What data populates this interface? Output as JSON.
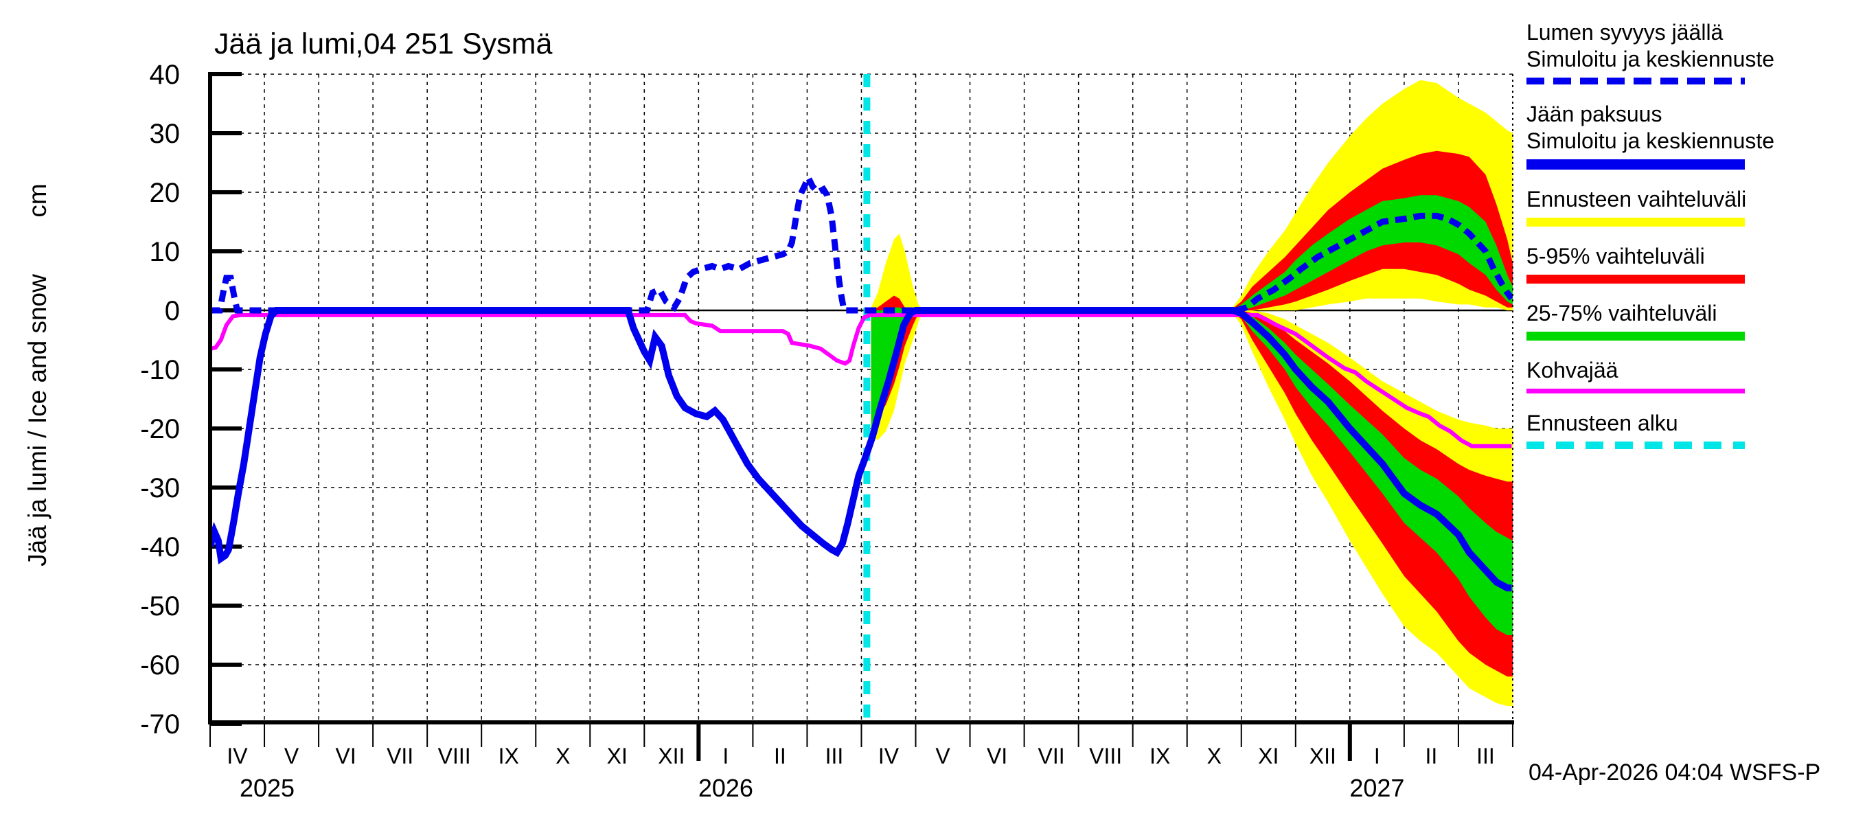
{
  "chart_data": {
    "type": "line",
    "title": "Jää ja lumi,04 251 Sysmä",
    "ylabel": "Jää ja lumi / Ice and snow",
    "ylabel_unit": "cm",
    "timestamp": "04-Apr-2026 04:04 WSFS-P",
    "grid": true,
    "legend_position": "right",
    "ylim": [
      -70,
      40
    ],
    "y_ticks": [
      40,
      30,
      20,
      10,
      0,
      -10,
      -20,
      -30,
      -40,
      -50,
      -60,
      -70
    ],
    "x_month_labels": [
      "IV",
      "V",
      "VI",
      "VII",
      "VIII",
      "IX",
      "X",
      "XI",
      "XII",
      "I",
      "II",
      "III",
      "IV",
      "V",
      "VI",
      "VII",
      "VIII",
      "IX",
      "X",
      "XI",
      "XII",
      "I",
      "II",
      "III"
    ],
    "year_labels": [
      {
        "month": 0.55,
        "label": "2025",
        "tick": false
      },
      {
        "month": 9,
        "label": "2026",
        "tick": true
      },
      {
        "month": 21,
        "label": "2027",
        "tick": true
      }
    ],
    "forecast_start_month": 12.1,
    "colors": {
      "blue": "#0000ee",
      "yellow": "#ffff00",
      "red": "#ff0000",
      "green": "#00d900",
      "magenta": "#ff00ff",
      "cyan": "#00e6e6",
      "black": "#000000"
    },
    "series": {
      "ice_thickness": [
        [
          0,
          -40
        ],
        [
          0.08,
          -37.5
        ],
        [
          0.15,
          -39
        ],
        [
          0.2,
          -42
        ],
        [
          0.28,
          -41.5
        ],
        [
          0.34,
          -40.5
        ],
        [
          0.43,
          -36
        ],
        [
          0.52,
          -31
        ],
        [
          0.62,
          -26
        ],
        [
          0.72,
          -20
        ],
        [
          0.82,
          -14
        ],
        [
          0.92,
          -8
        ],
        [
          1.02,
          -4
        ],
        [
          1.12,
          -1
        ],
        [
          1.22,
          0
        ],
        [
          7.7,
          0
        ],
        [
          7.8,
          -3
        ],
        [
          7.9,
          -5
        ],
        [
          8.0,
          -7
        ],
        [
          8.1,
          -8.5
        ],
        [
          8.2,
          -4.5
        ],
        [
          8.32,
          -6
        ],
        [
          8.45,
          -11
        ],
        [
          8.6,
          -14.5
        ],
        [
          8.75,
          -16.5
        ],
        [
          8.95,
          -17.5
        ],
        [
          9.15,
          -18
        ],
        [
          9.3,
          -17
        ],
        [
          9.45,
          -18.5
        ],
        [
          9.6,
          -21
        ],
        [
          9.75,
          -23.5
        ],
        [
          9.9,
          -26
        ],
        [
          10.1,
          -28.5
        ],
        [
          10.3,
          -30.5
        ],
        [
          10.5,
          -32.5
        ],
        [
          10.7,
          -34.5
        ],
        [
          10.9,
          -36.5
        ],
        [
          11.1,
          -38
        ],
        [
          11.3,
          -39.5
        ],
        [
          11.45,
          -40.5
        ],
        [
          11.55,
          -41
        ],
        [
          11.65,
          -39.5
        ],
        [
          11.75,
          -36
        ],
        [
          11.85,
          -32
        ],
        [
          11.95,
          -28
        ],
        [
          12.07,
          -25
        ],
        [
          12.2,
          -21.5
        ],
        [
          12.35,
          -16.5
        ],
        [
          12.5,
          -12
        ],
        [
          12.65,
          -7
        ],
        [
          12.78,
          -2.5
        ],
        [
          12.9,
          -0.5
        ],
        [
          13.0,
          0
        ],
        [
          18.85,
          0
        ],
        [
          19.0,
          -0.5
        ],
        [
          19.2,
          -2
        ],
        [
          19.5,
          -4.5
        ],
        [
          19.8,
          -7.5
        ],
        [
          20.0,
          -10
        ],
        [
          20.3,
          -13
        ],
        [
          20.6,
          -15.5
        ],
        [
          21.0,
          -20
        ],
        [
          21.3,
          -23
        ],
        [
          21.6,
          -26
        ],
        [
          22.0,
          -31
        ],
        [
          22.3,
          -33
        ],
        [
          22.6,
          -34.5
        ],
        [
          23.0,
          -38
        ],
        [
          23.2,
          -41
        ],
        [
          23.5,
          -44
        ],
        [
          23.7,
          -46
        ],
        [
          23.9,
          -47
        ],
        [
          23.98,
          -47
        ]
      ],
      "snow_depth_on_ice": [
        [
          0,
          0
        ],
        [
          0.18,
          0
        ],
        [
          0.24,
          3
        ],
        [
          0.3,
          5.5
        ],
        [
          0.38,
          5.5
        ],
        [
          0.44,
          2.5
        ],
        [
          0.5,
          0
        ],
        [
          8.05,
          0
        ],
        [
          8.15,
          3
        ],
        [
          8.28,
          3.5
        ],
        [
          8.4,
          1.5
        ],
        [
          8.55,
          0.5
        ],
        [
          8.65,
          2
        ],
        [
          8.78,
          5.5
        ],
        [
          8.9,
          6.5
        ],
        [
          9.05,
          7
        ],
        [
          9.25,
          7.5
        ],
        [
          9.4,
          7
        ],
        [
          9.55,
          7.5
        ],
        [
          9.75,
          7
        ],
        [
          9.95,
          8
        ],
        [
          10.15,
          8.5
        ],
        [
          10.35,
          9
        ],
        [
          10.55,
          9.5
        ],
        [
          10.65,
          10
        ],
        [
          10.72,
          11.5
        ],
        [
          10.8,
          16
        ],
        [
          10.87,
          19.5
        ],
        [
          10.95,
          21
        ],
        [
          11.02,
          22.5
        ],
        [
          11.1,
          21
        ],
        [
          11.2,
          20
        ],
        [
          11.3,
          20.5
        ],
        [
          11.37,
          19.5
        ],
        [
          11.45,
          16
        ],
        [
          11.5,
          12
        ],
        [
          11.56,
          7
        ],
        [
          11.62,
          3
        ],
        [
          11.68,
          0
        ],
        [
          18.9,
          0
        ],
        [
          19.1,
          0.5
        ],
        [
          19.3,
          2
        ],
        [
          19.6,
          3.5
        ],
        [
          19.9,
          5.5
        ],
        [
          20.1,
          7
        ],
        [
          20.4,
          9
        ],
        [
          20.7,
          10.5
        ],
        [
          21.0,
          12
        ],
        [
          21.3,
          13.5
        ],
        [
          21.6,
          15
        ],
        [
          22.0,
          15.5
        ],
        [
          22.3,
          16
        ],
        [
          22.6,
          16
        ],
        [
          22.8,
          15.5
        ],
        [
          23.0,
          14.5
        ],
        [
          23.2,
          13
        ],
        [
          23.35,
          11.5
        ],
        [
          23.5,
          10
        ],
        [
          23.65,
          7
        ],
        [
          23.8,
          4.5
        ],
        [
          23.9,
          3
        ],
        [
          23.98,
          2
        ]
      ],
      "kohvajaa": [
        [
          0,
          -6.5
        ],
        [
          0.1,
          -6.3
        ],
        [
          0.2,
          -5
        ],
        [
          0.3,
          -2.5
        ],
        [
          0.42,
          -1
        ],
        [
          0.55,
          -0.8
        ],
        [
          8.75,
          -0.8
        ],
        [
          8.85,
          -1.8
        ],
        [
          8.95,
          -2.2
        ],
        [
          9.25,
          -2.6
        ],
        [
          9.4,
          -3.5
        ],
        [
          10.55,
          -3.5
        ],
        [
          10.65,
          -4
        ],
        [
          10.72,
          -5.5
        ],
        [
          11.05,
          -6
        ],
        [
          11.25,
          -6.5
        ],
        [
          11.4,
          -7.5
        ],
        [
          11.55,
          -8.5
        ],
        [
          11.7,
          -9
        ],
        [
          11.78,
          -8.5
        ],
        [
          11.85,
          -6
        ],
        [
          11.95,
          -3
        ],
        [
          12.05,
          -1.2
        ],
        [
          12.15,
          -0.8
        ],
        [
          19.3,
          -0.8
        ],
        [
          19.45,
          -1.5
        ],
        [
          19.65,
          -2.5
        ],
        [
          20.0,
          -4
        ],
        [
          20.3,
          -6
        ],
        [
          20.6,
          -8
        ],
        [
          20.9,
          -9.8
        ],
        [
          21.1,
          -10.5
        ],
        [
          21.3,
          -12
        ],
        [
          21.55,
          -13.5
        ],
        [
          21.8,
          -15
        ],
        [
          22.05,
          -16.5
        ],
        [
          22.3,
          -17.5
        ],
        [
          22.45,
          -18
        ],
        [
          22.65,
          -19.5
        ],
        [
          22.85,
          -20.5
        ],
        [
          23.05,
          -22
        ],
        [
          23.25,
          -23
        ],
        [
          23.98,
          -23
        ]
      ]
    },
    "bands": {
      "spring_2026_melt": {
        "x": [
          12.18,
          12.3,
          12.45,
          12.6,
          12.7,
          12.8,
          12.95,
          13.05,
          13.12
        ],
        "yellow_up": [
          0.5,
          3,
          8,
          12,
          13,
          10,
          4,
          1,
          0
        ],
        "yellow_lo": [
          -21,
          -22,
          -20.5,
          -17,
          -13,
          -9,
          -5,
          -2,
          0
        ],
        "red_up": [
          0,
          0.5,
          1.5,
          2.5,
          2,
          0.5,
          0,
          0,
          0
        ],
        "red_lo": [
          -19,
          -18,
          -16,
          -12.5,
          -9.5,
          -6,
          -2.5,
          -0.5,
          0
        ],
        "green_up": [
          0,
          0,
          0,
          0.5,
          0.5,
          0,
          0,
          0,
          0
        ],
        "green_lo": [
          -20.5,
          -18.5,
          -14,
          -9,
          -5.5,
          -2.5,
          -0.5,
          0,
          0
        ]
      },
      "winter_2027_ice": {
        "x": [
          18.8,
          19.0,
          19.2,
          19.5,
          19.8,
          20.0,
          20.3,
          20.6,
          21.0,
          21.3,
          21.6,
          22.0,
          22.3,
          22.6,
          23.0,
          23.2,
          23.5,
          23.7,
          23.9,
          24.0
        ],
        "yellow_up": [
          0,
          0,
          0,
          -0.5,
          -1.5,
          -2.5,
          -4,
          -5.5,
          -8,
          -10,
          -12,
          -14,
          -15.5,
          -17,
          -18.5,
          -19,
          -19.5,
          -20,
          -20,
          -20
        ],
        "yellow_lo": [
          0,
          -2.5,
          -7,
          -13,
          -18.5,
          -22.5,
          -28,
          -32.5,
          -39,
          -43.5,
          -48,
          -53.5,
          -56,
          -58,
          -62,
          -64,
          -65.5,
          -66.5,
          -67,
          -67
        ],
        "red_up": [
          0,
          0,
          -0.5,
          -2,
          -3.5,
          -5,
          -7,
          -9,
          -12,
          -14.5,
          -17,
          -20,
          -22,
          -23.5,
          -26,
          -27,
          -28,
          -28.5,
          -29,
          -29
        ],
        "red_lo": [
          0,
          -1.5,
          -5,
          -9.5,
          -14,
          -17.5,
          -22,
          -26,
          -31.5,
          -35.5,
          -39.5,
          -45,
          -48,
          -51,
          -56,
          -58,
          -60,
          -61,
          -62,
          -62
        ],
        "green_up": [
          0,
          0,
          -1,
          -3,
          -5.5,
          -7.5,
          -10,
          -12.5,
          -16,
          -18.5,
          -21,
          -25,
          -27,
          -28.5,
          -31.5,
          -33.5,
          -36,
          -37.5,
          -38.5,
          -39
        ],
        "green_lo": [
          0,
          -1,
          -3.5,
          -6.5,
          -10,
          -13,
          -16.5,
          -19.5,
          -24,
          -27.5,
          -31,
          -36,
          -38.5,
          -41,
          -45.5,
          -48.5,
          -52,
          -54,
          -55,
          -55
        ]
      },
      "winter_2027_snow": {
        "x": [
          18.8,
          19.0,
          19.2,
          19.5,
          19.8,
          20.0,
          20.3,
          20.6,
          21.0,
          21.3,
          21.6,
          22.0,
          22.3,
          22.6,
          23.0,
          23.2,
          23.5,
          23.7,
          23.9,
          24.0
        ],
        "yellow_up": [
          0,
          2.5,
          6,
          10,
          13.5,
          16.5,
          21,
          25,
          29.5,
          32.5,
          35,
          37.5,
          39,
          38.5,
          36,
          35,
          33.5,
          32,
          30.5,
          30
        ],
        "yellow_lo": [
          0,
          0,
          0,
          0,
          0,
          0,
          0.5,
          1,
          1.5,
          2,
          2,
          2,
          2,
          1.5,
          1,
          1,
          0.5,
          0.5,
          0,
          0
        ],
        "red_up": [
          0,
          1.5,
          4,
          6.5,
          9,
          11,
          14,
          17,
          20,
          22,
          24,
          25.5,
          26.5,
          27,
          26.5,
          26,
          23,
          18,
          12,
          8
        ],
        "red_lo": [
          0,
          0,
          0,
          0.5,
          1,
          1.5,
          2.5,
          3.5,
          5,
          6,
          7,
          7,
          6.5,
          6,
          4.5,
          3.5,
          2.5,
          1.5,
          0.5,
          0.5
        ],
        "green_up": [
          0,
          1,
          2.5,
          4.5,
          6.5,
          8.5,
          11,
          13,
          15.5,
          17,
          18.5,
          19,
          19.5,
          19.5,
          18.5,
          17.5,
          15,
          11,
          6,
          4
        ],
        "green_lo": [
          0,
          0,
          0.5,
          1.5,
          2.5,
          3.5,
          5,
          6.5,
          8.5,
          10,
          11,
          11.5,
          11.5,
          11,
          9.5,
          8,
          6,
          3.5,
          1.5,
          1
        ]
      }
    },
    "legend": [
      {
        "lines": [
          "Lumen syvyys jäällä",
          "Simuloitu ja keskiennuste"
        ],
        "sample": "blue-dashed"
      },
      {
        "lines": [
          "Jään paksuus",
          "Simuloitu ja keskiennuste"
        ],
        "sample": "blue-solid"
      },
      {
        "lines": [
          "Ennusteen vaihteluväli"
        ],
        "sample": "yellow"
      },
      {
        "lines": [
          "5-95% vaihteluväli"
        ],
        "sample": "red"
      },
      {
        "lines": [
          "25-75% vaihteluväli"
        ],
        "sample": "green"
      },
      {
        "lines": [
          "Kohvajää"
        ],
        "sample": "magenta"
      },
      {
        "lines": [
          "Ennusteen alku"
        ],
        "sample": "cyan-dashed"
      }
    ]
  }
}
